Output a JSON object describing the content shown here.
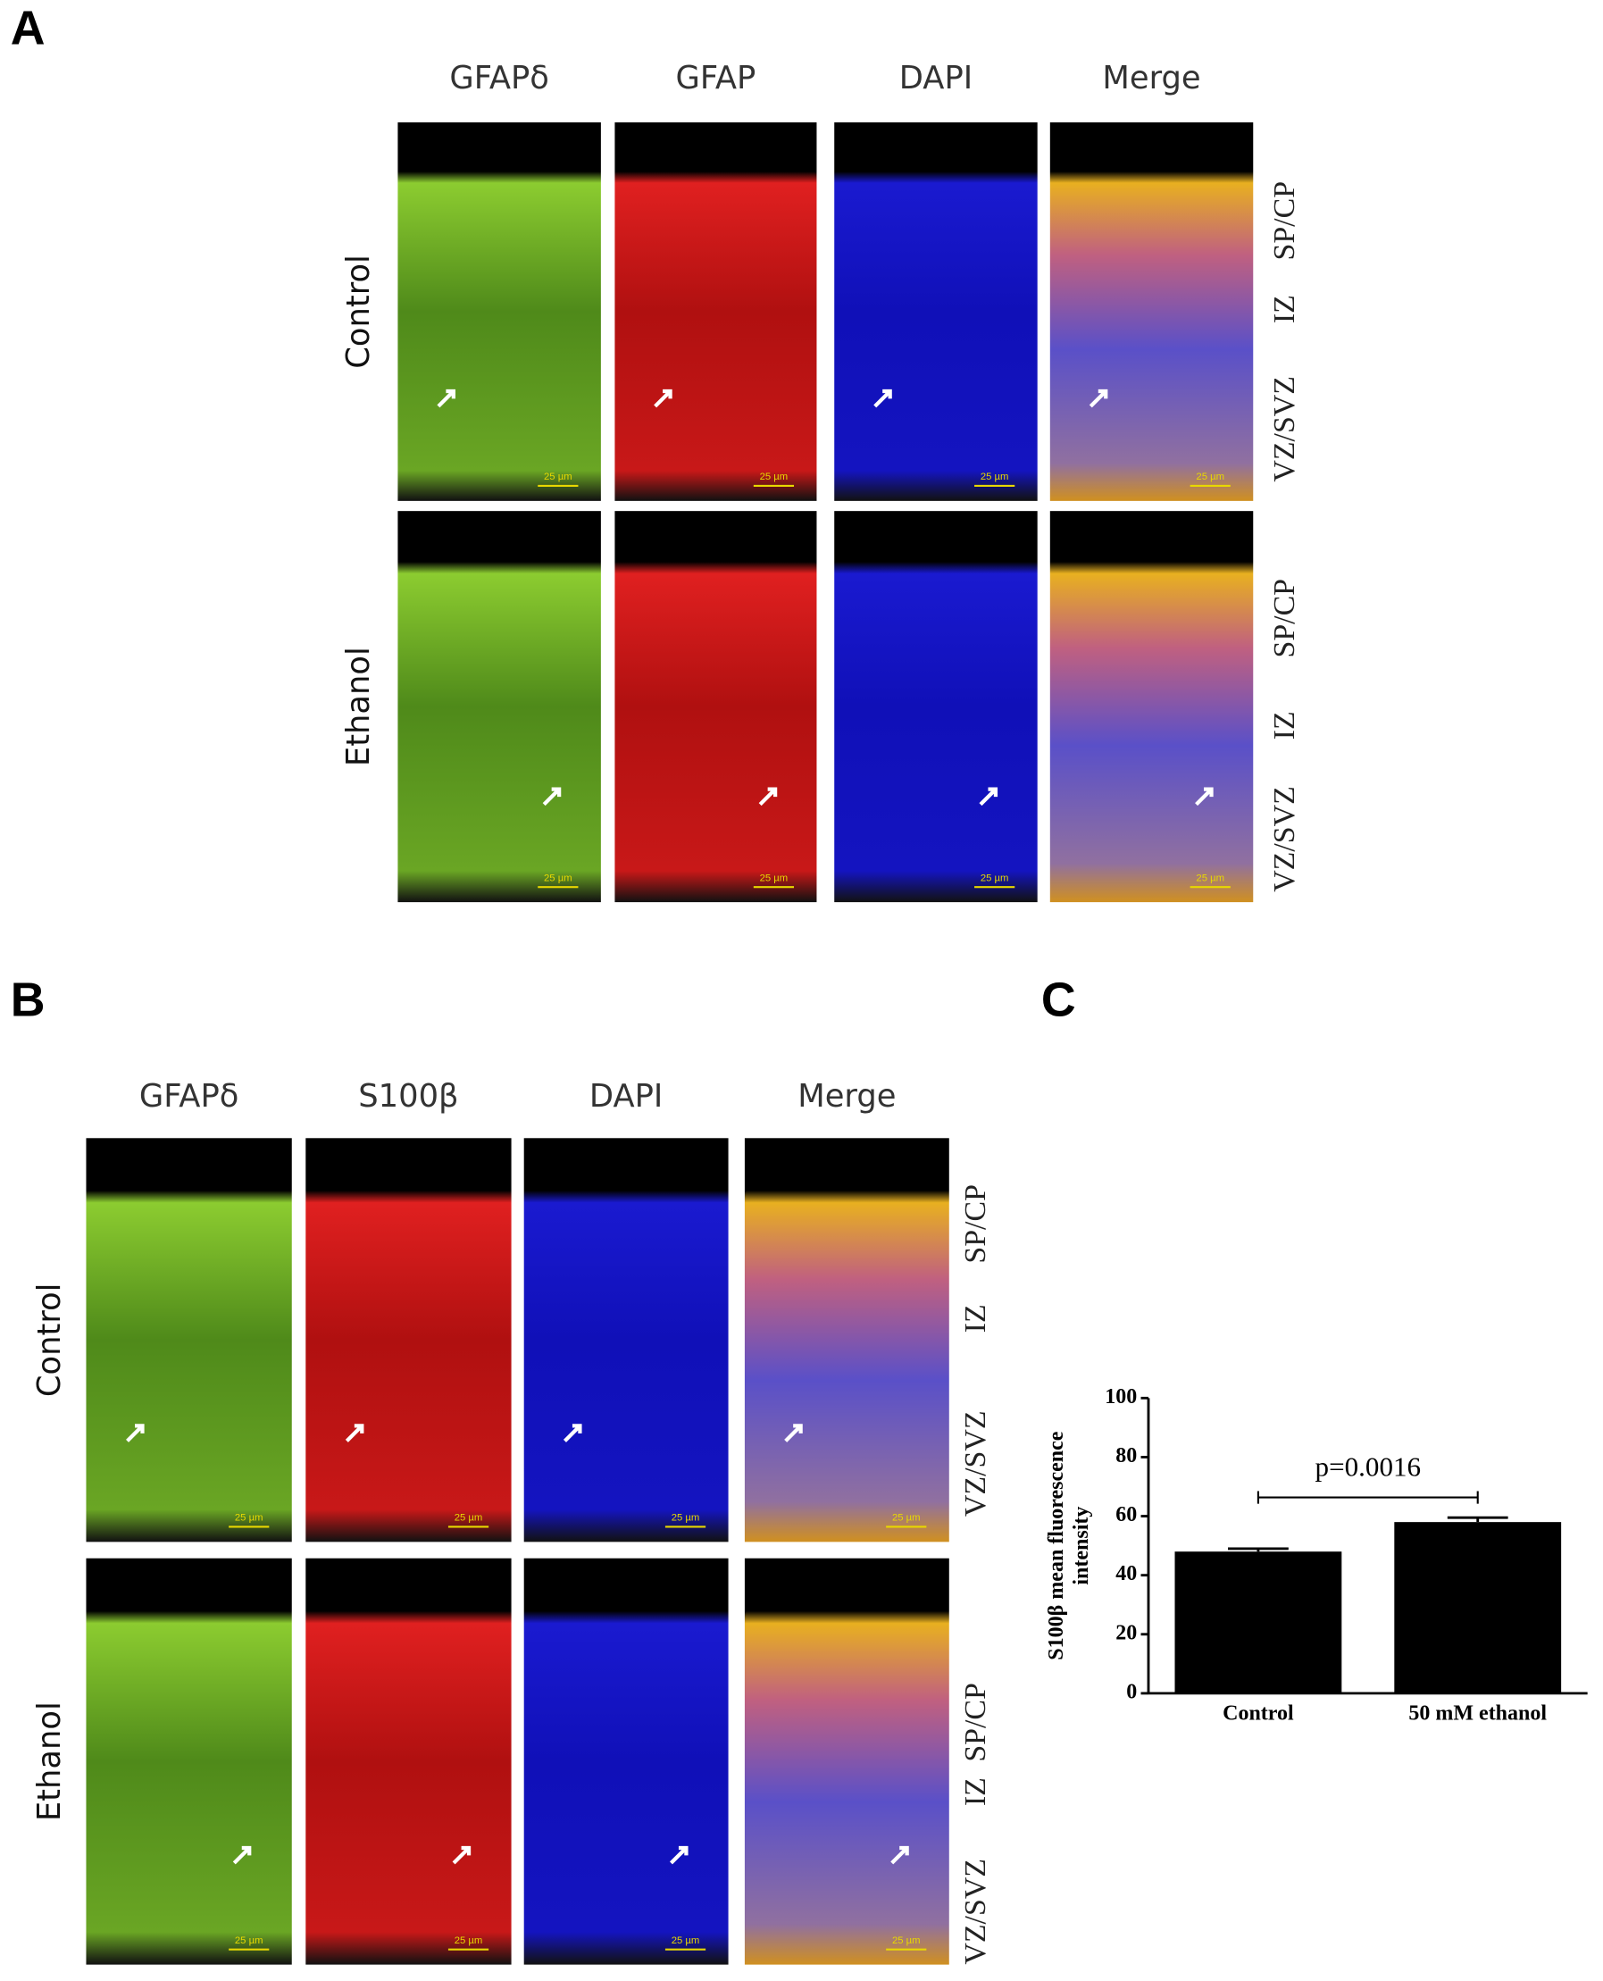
{
  "panel_a": {
    "label": "A",
    "columns": [
      "GFAPδ",
      "GFAP",
      "DAPI",
      "Merge"
    ],
    "rows": [
      "Control",
      "Ethanol"
    ],
    "zones": [
      "SP/CP",
      "IZ",
      "VZ/SVZ"
    ],
    "scale_bar": "25 µm"
  },
  "panel_b": {
    "label": "B",
    "columns": [
      "GFAPδ",
      "S100β",
      "DAPI",
      "Merge"
    ],
    "rows": [
      "Control",
      "Ethanol"
    ],
    "zones": [
      "SP/CP",
      "IZ",
      "VZ/SVZ"
    ],
    "scale_bar": "25 µm"
  },
  "panel_c": {
    "label": "C"
  },
  "chart_data": {
    "type": "bar",
    "ylabel": [
      "S100β  mean fluorescence",
      "intensity"
    ],
    "categories": [
      "Control",
      "50 mM ethanol"
    ],
    "values": [
      48,
      58
    ],
    "errors": [
      1,
      1.5
    ],
    "color": "#000000",
    "ylim": [
      0,
      100
    ],
    "yticks": [
      0,
      20,
      40,
      60,
      80,
      100
    ],
    "annotation": "p=0.0016"
  }
}
